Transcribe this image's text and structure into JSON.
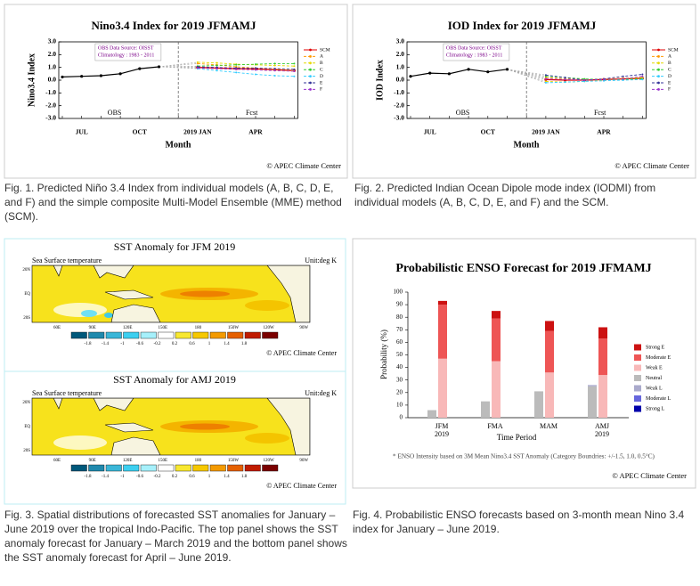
{
  "chart_data": [
    {
      "type": "line",
      "title": "Nino3.4 Index for 2019 JFMAMJ",
      "y_label": "Nino3.4 Index",
      "x_label": "Month",
      "source_note": [
        "OBS Data Source: OISST",
        "Climatology : 1983 - 2011"
      ],
      "annotations": [
        "OBS",
        "Fcst"
      ],
      "credit": "© APEC Climate Center",
      "categories": [
        null,
        "JUL",
        null,
        null,
        "OCT",
        null,
        null,
        "2019 JAN",
        null,
        null,
        "APR",
        null,
        null
      ],
      "ylim": [
        -3,
        3
      ],
      "yticks": [
        {
          "value": 3,
          "label": "3.0"
        },
        {
          "value": 2,
          "label": "2.0"
        },
        {
          "value": 1,
          "label": "1.0"
        },
        {
          "value": 0,
          "label": "0.0"
        },
        {
          "value": -1,
          "label": "-1.0"
        },
        {
          "value": -2,
          "label": "-2.0"
        },
        {
          "value": -3,
          "label": "-3.0"
        }
      ],
      "observed": {
        "color": "#000000",
        "values": [
          0.25,
          0.3,
          0.35,
          0.5,
          0.9,
          1.05,
          null,
          null,
          null,
          null,
          null,
          null,
          null
        ]
      },
      "series": [
        {
          "name": "SCM",
          "color": "#e00000",
          "line_style": "solid",
          "values": [
            null,
            null,
            null,
            null,
            null,
            null,
            null,
            1.0,
            0.95,
            0.9,
            0.88,
            0.82,
            0.75
          ]
        },
        {
          "name": "A",
          "color": "#ff9900",
          "line_style": "dashed",
          "values": [
            null,
            null,
            null,
            null,
            null,
            null,
            null,
            1.3,
            1.2,
            1.05,
            0.95,
            0.85,
            0.75
          ]
        },
        {
          "name": "B",
          "color": "#e6d800",
          "line_style": "dashed",
          "values": [
            null,
            null,
            null,
            null,
            null,
            null,
            null,
            1.4,
            1.35,
            1.25,
            1.2,
            1.15,
            1.1
          ]
        },
        {
          "name": "C",
          "color": "#33cc33",
          "line_style": "dashed",
          "values": [
            null,
            null,
            null,
            null,
            null,
            null,
            null,
            1.1,
            1.15,
            1.2,
            1.25,
            1.3,
            1.3
          ]
        },
        {
          "name": "D",
          "color": "#33ccff",
          "line_style": "dashed",
          "values": [
            null,
            null,
            null,
            null,
            null,
            null,
            null,
            0.9,
            0.75,
            0.6,
            0.45,
            0.35,
            0.3
          ]
        },
        {
          "name": "E",
          "color": "#333399",
          "line_style": "dashed",
          "values": [
            null,
            null,
            null,
            null,
            null,
            null,
            null,
            1.05,
            1.0,
            0.95,
            0.95,
            0.9,
            0.85
          ]
        },
        {
          "name": "F",
          "color": "#9933cc",
          "line_style": "dashed",
          "values": [
            null,
            null,
            null,
            null,
            null,
            null,
            null,
            0.95,
            0.9,
            0.85,
            0.8,
            0.75,
            0.7
          ]
        }
      ]
    },
    {
      "type": "line",
      "title": "IOD Index for 2019 JFMAMJ",
      "y_label": "IOD Index",
      "x_label": "Month",
      "source_note": [
        "OBS Data Source: OISST",
        "Climatology : 1983 - 2011"
      ],
      "annotations": [
        "OBS",
        "Fcst"
      ],
      "credit": "© APEC Climate Center",
      "categories": [
        null,
        "JUL",
        null,
        null,
        "OCT",
        null,
        null,
        "2019 JAN",
        null,
        null,
        "APR",
        null,
        null
      ],
      "ylim": [
        -3,
        3
      ],
      "yticks": [
        {
          "value": 3,
          "label": "3.0"
        },
        {
          "value": 2,
          "label": "2.0"
        },
        {
          "value": 1,
          "label": "1.0"
        },
        {
          "value": 0,
          "label": "0.0"
        },
        {
          "value": -1,
          "label": "-1.0"
        },
        {
          "value": -2,
          "label": "-2.0"
        },
        {
          "value": -3,
          "label": "-3.0"
        }
      ],
      "observed": {
        "color": "#000000",
        "values": [
          0.3,
          0.55,
          0.5,
          0.85,
          0.65,
          0.85,
          null,
          null,
          null,
          null,
          null,
          null,
          null
        ]
      },
      "series": [
        {
          "name": "SCM",
          "color": "#e00000",
          "line_style": "solid",
          "values": [
            null,
            null,
            null,
            null,
            null,
            null,
            null,
            0.05,
            0.0,
            0.0,
            0.05,
            0.1,
            0.15
          ]
        },
        {
          "name": "A",
          "color": "#ff9900",
          "line_style": "dashed",
          "values": [
            null,
            null,
            null,
            null,
            null,
            null,
            null,
            0.2,
            0.1,
            0.05,
            0.1,
            0.15,
            0.2
          ]
        },
        {
          "name": "B",
          "color": "#e6d800",
          "line_style": "dashed",
          "values": [
            null,
            null,
            null,
            null,
            null,
            null,
            null,
            -0.1,
            -0.15,
            -0.1,
            0.0,
            0.1,
            0.2
          ]
        },
        {
          "name": "C",
          "color": "#33cc33",
          "line_style": "dashed",
          "values": [
            null,
            null,
            null,
            null,
            null,
            null,
            null,
            0.3,
            0.2,
            0.1,
            0.05,
            0.05,
            0.1
          ]
        },
        {
          "name": "D",
          "color": "#33ccff",
          "line_style": "dashed",
          "values": [
            null,
            null,
            null,
            null,
            null,
            null,
            null,
            -0.2,
            -0.15,
            -0.1,
            -0.05,
            0.0,
            0.05
          ]
        },
        {
          "name": "E",
          "color": "#333399",
          "line_style": "dashed",
          "values": [
            null,
            null,
            null,
            null,
            null,
            null,
            null,
            0.4,
            0.2,
            0.0,
            0.1,
            0.3,
            0.45
          ]
        },
        {
          "name": "F",
          "color": "#9933cc",
          "line_style": "dashed",
          "values": [
            null,
            null,
            null,
            null,
            null,
            null,
            null,
            0.1,
            0.05,
            0.0,
            0.05,
            0.1,
            0.3
          ]
        }
      ]
    },
    {
      "type": "bar",
      "stacked": true,
      "title": "Probabilistic ENSO Forecast for 2019 JFMAMJ",
      "y_label": "Probability (%)",
      "x_label": "Time Period",
      "note": "* ENSO Intensity based on 3M Mean Nino3.4 SST Anomaly (Category Boundries: +/-1.5, 1.0, 0.5°C)",
      "credit": "© APEC Climate Center",
      "categories": [
        "JFM\n2019",
        "FMA",
        "MAM",
        "AMJ\n2019"
      ],
      "ylim": [
        0,
        100
      ],
      "yticks": [
        0,
        10,
        20,
        30,
        40,
        50,
        60,
        70,
        80,
        90,
        100
      ],
      "series": [
        {
          "name": "Strong E",
          "color": "#cc1111",
          "values": [
            3,
            6,
            8,
            9
          ]
        },
        {
          "name": "Moderate E",
          "color": "#ee5555",
          "values": [
            43,
            34,
            33,
            29
          ]
        },
        {
          "name": "Weak E",
          "color": "#f8b8b8",
          "values": [
            47,
            45,
            36,
            34
          ]
        },
        {
          "name": "Neutral",
          "color": "#bbbbbb",
          "values": [
            6,
            13,
            21,
            25
          ]
        },
        {
          "name": "Weak L",
          "color": "#aaaacc",
          "values": [
            0,
            0,
            0,
            1
          ]
        },
        {
          "name": "Moderate L",
          "color": "#6666dd",
          "values": [
            0,
            0,
            0,
            0
          ]
        },
        {
          "name": "Strong L",
          "color": "#0000aa",
          "values": [
            0,
            0,
            0,
            0
          ]
        }
      ]
    }
  ],
  "maps": [
    {
      "title": "SST Anomaly for JFM 2019",
      "subtitle": "Sea Surface temperature",
      "unit": "Unit:deg K",
      "credit": "© APEC Climate Center"
    },
    {
      "title": "SST Anomaly for AMJ 2019",
      "subtitle": "Sea Surface temperature",
      "unit": "Unit:deg K",
      "credit": "© APEC Climate Center"
    }
  ],
  "map_axes": {
    "lat": [
      "20N",
      "EQ",
      "20S"
    ],
    "lon": [
      "60E",
      "90E",
      "120E",
      "150E",
      "180",
      "150W",
      "120W",
      "90W"
    ],
    "colorbar": [
      "-1.8",
      "-1.4",
      "-1",
      "-0.6",
      "-0.2",
      "0.2",
      "0.6",
      "1",
      "1.4",
      "1.8"
    ]
  },
  "captions": [
    "Fig. 1. Predicted Niño 3.4 Index from individual models (A, B, C, D, E, and F) and the simple composite Multi-Model Ensemble (MME) method (SCM).",
    "Fig. 2. Predicted Indian Ocean Dipole mode index (IODMI) from individual models (A, B, C, D, E, and F) and the SCM.",
    "Fig. 3. Spatial distributions of forecasted SST anomalies for January – June 2019 over the tropical Indo-Pacific. The top panel shows the SST anomaly forecast for January – March 2019 and the bottom panel shows the SST anomaly forecast for April – June 2019.",
    "Fig. 4. Probabilistic ENSO forecasts based on 3-month mean Nino 3.4 index for January – June 2019."
  ]
}
